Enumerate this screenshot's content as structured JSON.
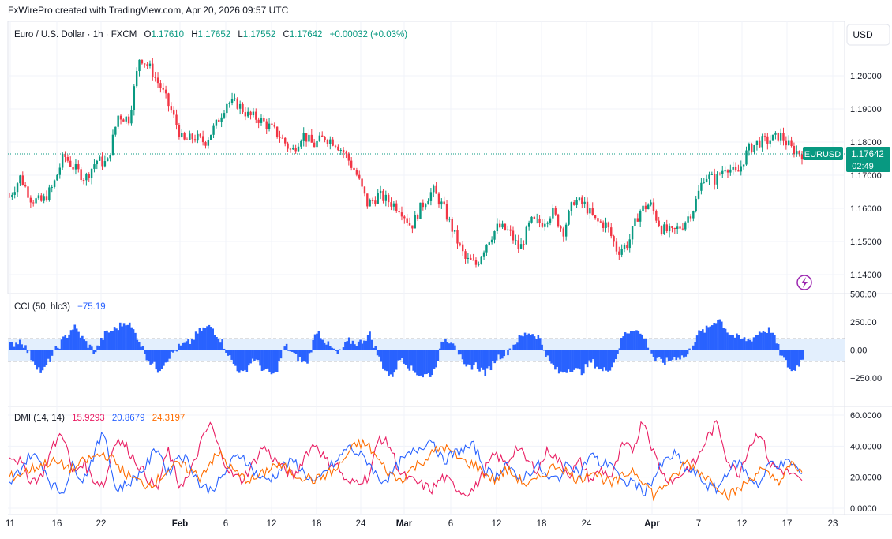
{
  "header": {
    "attribution": "FxWirePro created with TradingView.com, Apr 20, 2026 09:57 UTC"
  },
  "legend": {
    "symbol": "Euro / U.S. Dollar · 1h · FXCM",
    "o_label": "O",
    "o": "1.17610",
    "h_label": "H",
    "h": "1.17652",
    "l_label": "L",
    "l": "1.17552",
    "c_label": "C",
    "c": "1.17642",
    "change": "+0.00032 (+0.03%)"
  },
  "currency_button": "USD",
  "price_tag": {
    "symbol": "EURUSD",
    "price": "1.17642",
    "countdown": "02:49"
  },
  "cci": {
    "label": "CCI (50, hlc3)",
    "value": "−75.19",
    "levels": [
      100,
      -100
    ]
  },
  "dmi": {
    "label": "DMI (14, 14)",
    "plus": "15.9293",
    "minus": "20.8679",
    "adx": "24.3197"
  },
  "colors": {
    "up": "#089981",
    "down": "#f23645",
    "cci": "#2962ff",
    "cci_band": "#e3effd",
    "di_plus": "#e91e63",
    "di_minus": "#2962ff",
    "adx": "#ff6d00",
    "grid": "#f0f3fa",
    "axis_text": "#131722",
    "tag_bg": "#089981"
  },
  "chart_data": [
    {
      "type": "candlestick",
      "title": "Euro / U.S. Dollar · 1h · FXCM",
      "ylim": [
        1.134,
        1.211
      ],
      "y_ticks": [
        "1.14000",
        "1.15000",
        "1.16000",
        "1.17000",
        "1.18000",
        "1.19000",
        "1.20000"
      ],
      "x_ticks": [
        "11",
        "16",
        "22",
        "Feb",
        "6",
        "12",
        "18",
        "24",
        "Mar",
        "6",
        "12",
        "18",
        "24",
        "Apr",
        "7",
        "12",
        "17",
        "23"
      ],
      "last_price": 1.17642,
      "path": [
        {
          "x": "Jan 11",
          "y": 1.1635
        },
        {
          "x": "Jan 13",
          "y": 1.1695
        },
        {
          "x": "Jan 16",
          "y": 1.1628
        },
        {
          "x": "Jan 18",
          "y": 1.162
        },
        {
          "x": "Jan 19",
          "y": 1.1665
        },
        {
          "x": "Jan 20",
          "y": 1.176
        },
        {
          "x": "Jan 21",
          "y": 1.172
        },
        {
          "x": "Jan 22",
          "y": 1.169
        },
        {
          "x": "Jan 23",
          "y": 1.1745
        },
        {
          "x": "Jan 25",
          "y": 1.1735
        },
        {
          "x": "Jan 26",
          "y": 1.188
        },
        {
          "x": "Jan 27",
          "y": 1.187
        },
        {
          "x": "Jan 28",
          "y": 1.206
        },
        {
          "x": "Jan 29",
          "y": 1.202
        },
        {
          "x": "Jan 30",
          "y": 1.196
        },
        {
          "x": "Feb 1",
          "y": 1.1885
        },
        {
          "x": "Feb 3",
          "y": 1.18
        },
        {
          "x": "Feb 5",
          "y": 1.1815
        },
        {
          "x": "Feb 7",
          "y": 1.18
        },
        {
          "x": "Feb 8",
          "y": 1.185
        },
        {
          "x": "Feb 10",
          "y": 1.192
        },
        {
          "x": "Feb 12",
          "y": 1.1915
        },
        {
          "x": "Feb 13",
          "y": 1.188
        },
        {
          "x": "Feb 16",
          "y": 1.187
        },
        {
          "x": "Feb 18",
          "y": 1.1845
        },
        {
          "x": "Feb 19",
          "y": 1.1815
        },
        {
          "x": "Feb 20",
          "y": 1.177
        },
        {
          "x": "Feb 22",
          "y": 1.1825
        },
        {
          "x": "Feb 24",
          "y": 1.179
        },
        {
          "x": "Feb 26",
          "y": 1.1815
        },
        {
          "x": "Feb 28",
          "y": 1.18
        },
        {
          "x": "Mar 1",
          "y": 1.176
        },
        {
          "x": "Mar 2",
          "y": 1.17
        },
        {
          "x": "Mar 3",
          "y": 1.161
        },
        {
          "x": "Mar 4",
          "y": 1.164
        },
        {
          "x": "Mar 5",
          "y": 1.162
        },
        {
          "x": "Mar 6",
          "y": 1.16
        },
        {
          "x": "Mar 7",
          "y": 1.1545
        },
        {
          "x": "Mar 8",
          "y": 1.161
        },
        {
          "x": "Mar 9",
          "y": 1.1655
        },
        {
          "x": "Mar 10",
          "y": 1.16
        },
        {
          "x": "Mar 12",
          "y": 1.152
        },
        {
          "x": "Mar 13",
          "y": 1.1445
        },
        {
          "x": "Mar 14",
          "y": 1.143
        },
        {
          "x": "Mar 15",
          "y": 1.15
        },
        {
          "x": "Mar 17",
          "y": 1.1545
        },
        {
          "x": "Mar 18",
          "y": 1.153
        },
        {
          "x": "Mar 19",
          "y": 1.1475
        },
        {
          "x": "Mar 20",
          "y": 1.156
        },
        {
          "x": "Mar 22",
          "y": 1.1555
        },
        {
          "x": "Mar 24",
          "y": 1.159
        },
        {
          "x": "Mar 25",
          "y": 1.153
        },
        {
          "x": "Mar 26",
          "y": 1.1625
        },
        {
          "x": "Mar 27",
          "y": 1.161
        },
        {
          "x": "Mar 29",
          "y": 1.156
        },
        {
          "x": "Mar 30",
          "y": 1.155
        },
        {
          "x": "Apr 1",
          "y": 1.147
        },
        {
          "x": "Apr 2",
          "y": 1.1495
        },
        {
          "x": "Apr 3",
          "y": 1.159
        },
        {
          "x": "Apr 4",
          "y": 1.1615
        },
        {
          "x": "Apr 5",
          "y": 1.154
        },
        {
          "x": "Apr 6",
          "y": 1.1525
        },
        {
          "x": "Apr 8",
          "y": 1.155
        },
        {
          "x": "Apr 9",
          "y": 1.16
        },
        {
          "x": "Apr 10",
          "y": 1.17
        },
        {
          "x": "Apr 11",
          "y": 1.1685
        },
        {
          "x": "Apr 12",
          "y": 1.173
        },
        {
          "x": "Apr 13",
          "y": 1.17
        },
        {
          "x": "Apr 14",
          "y": 1.1775
        },
        {
          "x": "Apr 15",
          "y": 1.18
        },
        {
          "x": "Apr 17",
          "y": 1.1805
        },
        {
          "x": "Apr 18",
          "y": 1.182
        },
        {
          "x": "Apr 19",
          "y": 1.178
        },
        {
          "x": "Apr 20",
          "y": 1.17642
        }
      ]
    },
    {
      "type": "area",
      "title": "CCI (50, hlc3)",
      "ylim": [
        -330,
        540
      ],
      "y_ticks": [
        "500.00",
        "250.00",
        "0.00",
        "−250.00"
      ],
      "series": [
        {
          "name": "CCI (50, hlc3)",
          "values": [
            40,
            90,
            -70,
            -210,
            -40,
            90,
            210,
            80,
            -20,
            150,
            190,
            260,
            120,
            -80,
            -180,
            -60,
            30,
            70,
            180,
            210,
            80,
            -110,
            -220,
            -70,
            -180,
            -230,
            40,
            -60,
            -130,
            180,
            50,
            -40,
            80,
            60,
            140,
            -100,
            -250,
            -60,
            -180,
            -230,
            -210,
            100,
            80,
            -170,
            -130,
            -210,
            -70,
            -20,
            90,
            160,
            120,
            -110,
            -210,
            -160,
            -200,
            -100,
            -190,
            -140,
            130,
            200,
            110,
            -90,
            -110,
            -60,
            -60,
            140,
            190,
            290,
            150,
            100,
            90,
            170,
            180,
            -60,
            -200,
            -75
          ]
        }
      ]
    },
    {
      "type": "line",
      "title": "DMI (14, 14)",
      "ylim": [
        -2,
        64
      ],
      "y_ticks": [
        "60.0000",
        "40.0000",
        "20.0000",
        "0.0000"
      ],
      "series": [
        {
          "name": "+DI",
          "values": [
            35,
            30,
            18,
            20,
            38,
            50,
            22,
            30,
            18,
            15,
            45,
            40,
            30,
            20,
            12,
            38,
            15,
            20,
            40,
            55,
            35,
            22,
            18,
            28,
            40,
            32,
            25,
            20,
            35,
            42,
            30,
            28,
            15,
            18,
            20,
            46,
            40,
            22,
            18,
            15,
            12,
            20,
            15,
            10,
            12,
            25,
            35,
            28,
            40,
            30,
            25,
            38,
            30,
            22,
            30,
            18,
            25,
            20,
            40,
            38,
            58,
            35,
            20,
            18,
            25,
            30,
            45,
            55,
            30,
            22,
            40,
            50,
            28,
            25,
            22,
            16
          ]
        },
        {
          "name": "−DI",
          "values": [
            15,
            25,
            35,
            30,
            15,
            10,
            28,
            18,
            35,
            50,
            12,
            15,
            20,
            28,
            40,
            22,
            35,
            30,
            15,
            12,
            18,
            30,
            35,
            25,
            18,
            20,
            28,
            30,
            22,
            15,
            25,
            30,
            40,
            35,
            30,
            18,
            20,
            30,
            35,
            40,
            45,
            30,
            35,
            38,
            40,
            25,
            20,
            30,
            18,
            22,
            28,
            18,
            20,
            30,
            22,
            35,
            28,
            30,
            15,
            18,
            10,
            20,
            30,
            35,
            25,
            22,
            15,
            12,
            25,
            30,
            20,
            15,
            30,
            28,
            30,
            21
          ]
        },
        {
          "name": "ADX",
          "values": [
            20,
            22,
            25,
            28,
            30,
            28,
            25,
            30,
            33,
            35,
            30,
            22,
            18,
            15,
            18,
            25,
            28,
            25,
            20,
            30,
            35,
            25,
            20,
            18,
            22,
            28,
            26,
            22,
            20,
            18,
            22,
            25,
            35,
            42,
            40,
            30,
            22,
            18,
            25,
            30,
            35,
            40,
            35,
            30,
            28,
            22,
            18,
            25,
            20,
            15,
            18,
            25,
            28,
            22,
            18,
            25,
            20,
            15,
            20,
            25,
            18,
            8,
            15,
            20,
            30,
            25,
            20,
            15,
            8,
            12,
            18,
            25,
            20,
            18,
            28,
            24
          ]
        }
      ]
    }
  ]
}
